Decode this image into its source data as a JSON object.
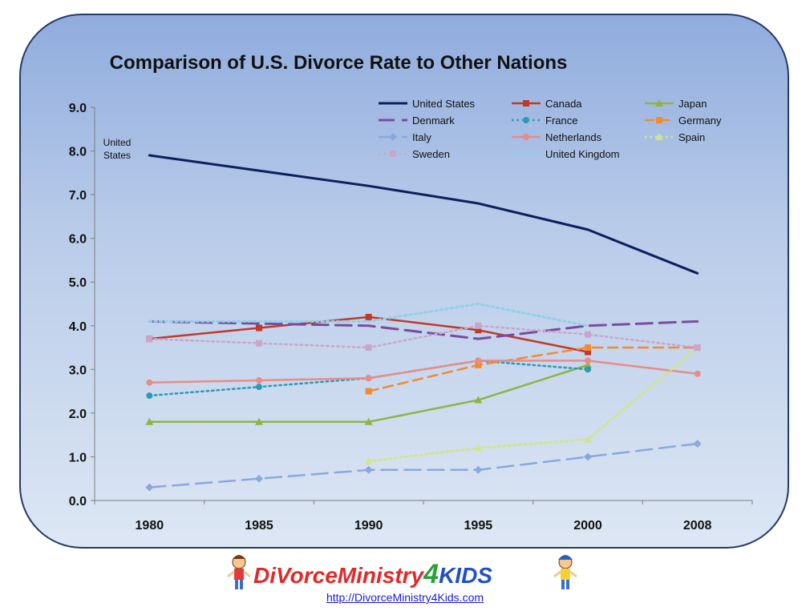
{
  "chart_data": {
    "type": "line",
    "title": "Comparison of U.S. Divorce Rate to Other Nations",
    "xlabel": "",
    "ylabel": "",
    "categories": [
      "1980",
      "1985",
      "1990",
      "1995",
      "2000",
      "2008"
    ],
    "ylim": [
      0,
      9
    ],
    "yticks": [
      "0.0",
      "1.0",
      "2.0",
      "3.0",
      "4.0",
      "5.0",
      "6.0",
      "7.0",
      "8.0",
      "9.0"
    ],
    "grid": false,
    "legend_position": "top-right",
    "annotations": [
      {
        "text": "United States",
        "series": "United States"
      }
    ],
    "series": [
      {
        "name": "United States",
        "color": "#0d1f5c",
        "dash": "solid",
        "marker": "none",
        "width": 3,
        "values": [
          7.9,
          7.55,
          7.2,
          6.8,
          6.2,
          5.2
        ]
      },
      {
        "name": "Canada",
        "color": "#c0392b",
        "dash": "solid",
        "marker": "square",
        "width": 2.5,
        "values": [
          3.7,
          3.95,
          4.2,
          3.9,
          3.4,
          null
        ]
      },
      {
        "name": "Japan",
        "color": "#8db544",
        "dash": "solid",
        "marker": "triangle",
        "width": 2.5,
        "values": [
          1.8,
          1.8,
          1.8,
          2.3,
          3.1,
          null
        ]
      },
      {
        "name": "Denmark",
        "color": "#7b4c9e",
        "dash": "longdash",
        "marker": "none",
        "width": 3,
        "values": [
          4.1,
          4.05,
          4.0,
          3.7,
          4.0,
          4.1
        ]
      },
      {
        "name": "France",
        "color": "#2a9bb5",
        "dash": "dot",
        "marker": "circle",
        "width": 2.5,
        "values": [
          2.4,
          2.6,
          2.8,
          3.2,
          3.0,
          null
        ]
      },
      {
        "name": "Germany",
        "color": "#f28a30",
        "dash": "dash",
        "marker": "square",
        "width": 2.5,
        "values": [
          null,
          null,
          2.5,
          3.1,
          3.5,
          3.5
        ]
      },
      {
        "name": "Italy",
        "color": "#8aa8dc",
        "dash": "longdash",
        "marker": "diamond",
        "width": 2.5,
        "values": [
          0.3,
          0.5,
          0.7,
          0.7,
          1.0,
          1.3
        ]
      },
      {
        "name": "Netherlands",
        "color": "#e88c86",
        "dash": "solid",
        "marker": "circle",
        "width": 2.5,
        "values": [
          2.7,
          2.75,
          2.8,
          3.2,
          3.2,
          2.9
        ]
      },
      {
        "name": "Spain",
        "color": "#cfe58b",
        "dash": "dot",
        "marker": "triangle",
        "width": 3,
        "values": [
          null,
          null,
          0.9,
          1.2,
          1.4,
          3.5
        ]
      },
      {
        "name": "Sweden",
        "color": "#c9a6c8",
        "dash": "dot",
        "marker": "square",
        "width": 2.5,
        "values": [
          3.7,
          3.6,
          3.5,
          4.0,
          3.8,
          3.5
        ]
      },
      {
        "name": "United Kingdom",
        "color": "#8fd0e8",
        "dash": "dot",
        "marker": "none",
        "width": 3,
        "values": [
          4.1,
          4.1,
          4.1,
          4.5,
          4.0,
          null
        ]
      }
    ]
  },
  "footer": {
    "logo_text_1": "DiVorce",
    "logo_text_2": "Ministry",
    "logo_text_3": "4",
    "logo_text_4": "KIDS",
    "url": "http://DivorceMinistry4Kids.com"
  }
}
